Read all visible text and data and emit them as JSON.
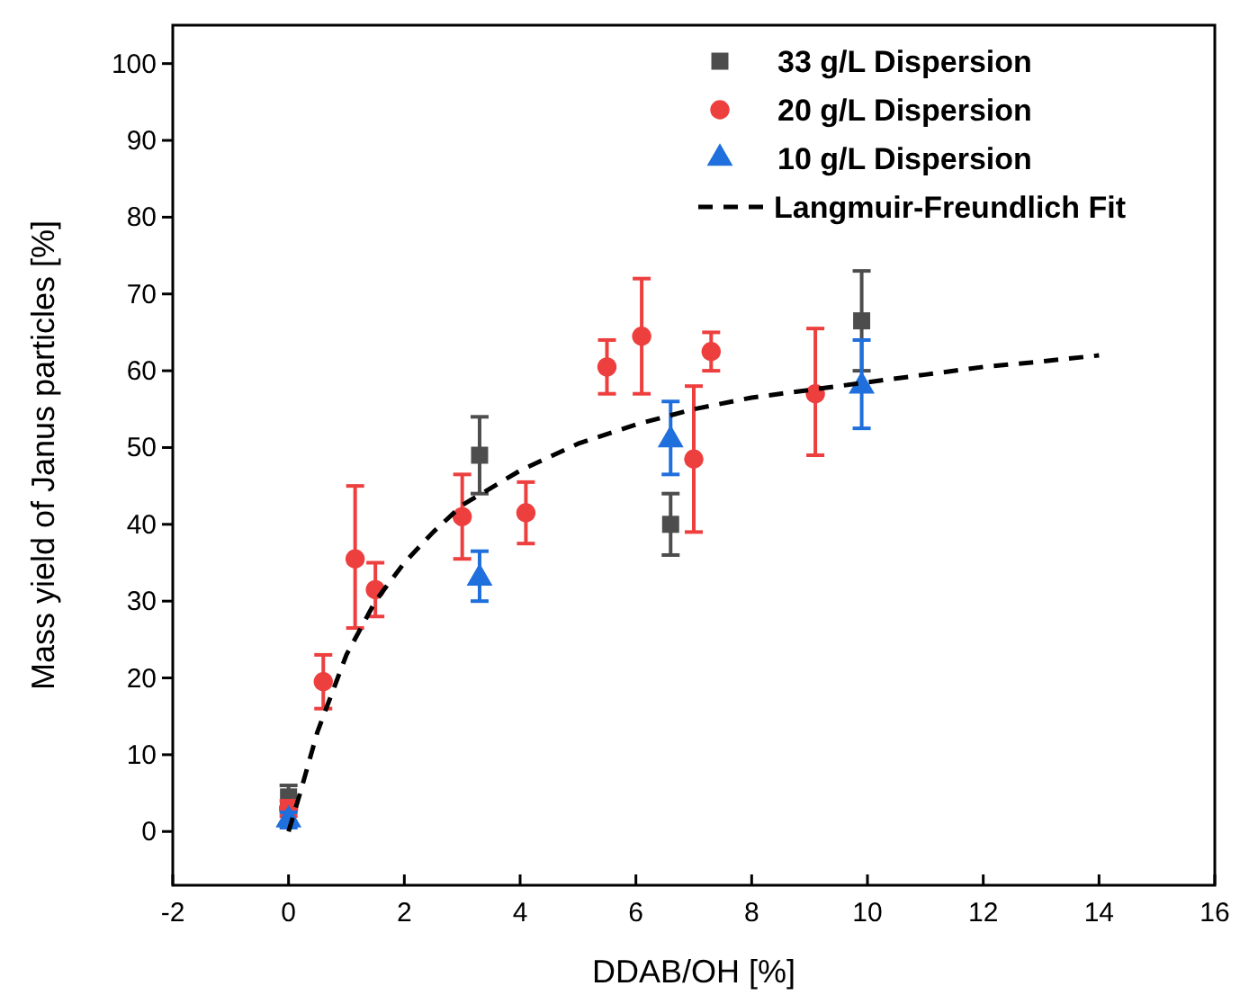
{
  "chart_data": {
    "type": "scatter",
    "xlabel": "DDAB/OH [%]",
    "ylabel": "Mass yield of Janus particles [%]",
    "xlim": [
      -2,
      16
    ],
    "ylim": [
      -7,
      105
    ],
    "xticks": [
      -2,
      0,
      2,
      4,
      6,
      8,
      10,
      12,
      14,
      16
    ],
    "yticks": [
      0,
      10,
      20,
      30,
      40,
      50,
      60,
      70,
      80,
      90,
      100
    ],
    "legend": "top right",
    "grid": false,
    "series": [
      {
        "name": "33 g/L Dispersion",
        "color": "#4d4d4d",
        "marker": "square",
        "x": [
          0,
          3.3,
          6.6,
          9.9
        ],
        "values": [
          4.5,
          49,
          40,
          66.5
        ],
        "errors": [
          [
            3,
            6
          ],
          [
            44,
            54
          ],
          [
            36,
            44
          ],
          [
            60,
            73
          ]
        ]
      },
      {
        "name": "20 g/L Dispersion",
        "color": "#ee3f3f",
        "marker": "circle",
        "x": [
          0,
          0.6,
          1.15,
          1.5,
          3.0,
          4.1,
          5.5,
          6.1,
          7.0,
          7.3,
          9.1
        ],
        "values": [
          3,
          19.5,
          35.5,
          31.5,
          41,
          41.5,
          60.5,
          64.5,
          48.5,
          62.5,
          57
        ],
        "errors": [
          [
            2,
            4
          ],
          [
            16,
            23
          ],
          [
            26.5,
            45
          ],
          [
            28,
            35
          ],
          [
            35.5,
            46.5
          ],
          [
            37.5,
            45.5
          ],
          [
            57,
            64
          ],
          [
            57,
            72
          ],
          [
            39,
            58
          ],
          [
            60,
            65
          ],
          [
            49,
            65.5
          ]
        ]
      },
      {
        "name": "10 g/L Dispersion",
        "color": "#1f6fdc",
        "marker": "triangle",
        "x": [
          0,
          3.3,
          6.6,
          9.9
        ],
        "values": [
          1.5,
          33,
          51,
          58
        ],
        "errors": [
          [
            0.5,
            2.5
          ],
          [
            30,
            36.5
          ],
          [
            46.5,
            56
          ],
          [
            52.5,
            64
          ]
        ]
      },
      {
        "name": "Langmuir-Freundlich Fit",
        "type": "line",
        "color": "#000000",
        "line_style": "dashed",
        "x": [
          0,
          0.2,
          0.5,
          1,
          1.5,
          2,
          2.5,
          3,
          4,
          5,
          6,
          7,
          8,
          9,
          10,
          11,
          12,
          13,
          14
        ],
        "values": [
          0,
          5,
          13,
          23,
          30,
          35,
          39,
          42.5,
          47,
          50.5,
          53,
          55,
          56.5,
          57.5,
          58.5,
          59.5,
          60.5,
          61.2,
          62
        ]
      }
    ]
  }
}
